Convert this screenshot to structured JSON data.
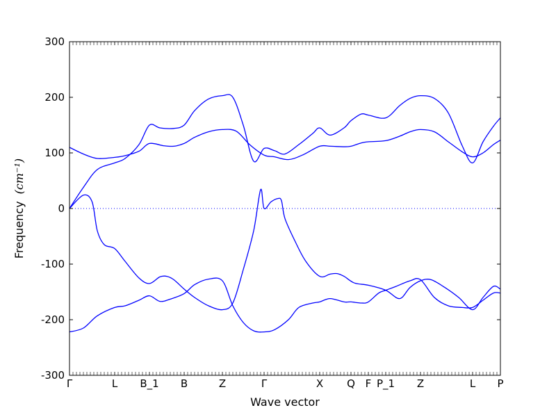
{
  "chart_data": {
    "type": "line",
    "title": "",
    "xlabel": "Wave vector",
    "ylabel": "Frequency",
    "ylabel_unit": "(cm⁻¹)",
    "ylim": [
      -300,
      300
    ],
    "xlim": [
      0,
      12.4
    ],
    "y_ticks": [
      -300,
      -200,
      -100,
      0,
      100,
      200,
      300
    ],
    "x_ticks": [
      {
        "pos": 0,
        "label": "Γ"
      },
      {
        "pos": 1.3,
        "label": "L"
      },
      {
        "pos": 2.3,
        "label": "B_1"
      },
      {
        "pos": 3.3,
        "label": "B"
      },
      {
        "pos": 4.4,
        "label": "Z"
      },
      {
        "pos": 5.6,
        "label": "Γ"
      },
      {
        "pos": 7.2,
        "label": "X"
      },
      {
        "pos": 8.1,
        "label": "Q"
      },
      {
        "pos": 8.6,
        "label": "F"
      },
      {
        "pos": 9.1,
        "label": "P_1"
      },
      {
        "pos": 10.1,
        "label": "Z"
      },
      {
        "pos": 11.6,
        "label": "L"
      },
      {
        "pos": 12.4,
        "label": "P"
      }
    ],
    "zero_line": {
      "y": 0,
      "style": "dotted"
    },
    "grid": false,
    "series_color": "#0000ff",
    "series": [
      {
        "x": [
          0,
          0.4,
          0.8,
          1.3,
          1.6,
          2.0,
          2.3,
          2.7,
          3.0,
          3.3,
          3.6,
          4.0,
          4.4,
          4.8,
          5.2,
          5.6,
          5.9,
          6.3,
          6.7,
          7.2,
          7.5,
          7.9,
          8.1,
          8.4,
          8.6,
          9.1,
          9.5,
          9.8,
          10.1,
          10.5,
          10.9,
          11.3,
          11.6,
          11.9,
          12.2,
          12.4
        ],
        "y": [
          110,
          98,
          90,
          92,
          95,
          103,
          117,
          113,
          112,
          117,
          128,
          138,
          142,
          139,
          114,
          96,
          93,
          88,
          96,
          112,
          112,
          111,
          112,
          118,
          120,
          122,
          130,
          138,
          142,
          138,
          120,
          102,
          93,
          100,
          115,
          123
        ]
      },
      {
        "x": [
          0,
          0.4,
          0.8,
          1.3,
          1.6,
          2.0,
          2.3,
          2.6,
          3.0,
          3.3,
          3.6,
          4.0,
          4.4,
          4.7,
          5.0,
          5.3,
          5.6,
          5.9,
          6.2,
          6.6,
          7.0,
          7.2,
          7.5,
          7.9,
          8.1,
          8.4,
          8.6,
          9.1,
          9.5,
          9.8,
          10.1,
          10.5,
          10.9,
          11.3,
          11.6,
          11.9,
          12.2,
          12.4
        ],
        "y": [
          0,
          38,
          70,
          82,
          90,
          115,
          150,
          145,
          144,
          150,
          176,
          197,
          203,
          200,
          150,
          85,
          108,
          104,
          98,
          115,
          135,
          145,
          132,
          145,
          158,
          170,
          168,
          163,
          185,
          198,
          203,
          198,
          172,
          113,
          82,
          120,
          148,
          163
        ]
      },
      {
        "x": [
          0,
          0.4,
          0.65,
          0.8,
          1.0,
          1.3,
          1.6,
          2.0,
          2.3,
          2.6,
          2.8,
          3.0,
          3.3,
          3.6,
          4.0,
          4.4,
          4.7,
          5.0,
          5.3,
          5.5,
          5.6,
          5.8,
          6.0,
          6.1,
          6.2,
          6.5,
          6.8,
          7.2,
          7.5,
          7.7,
          7.9,
          8.2,
          8.6,
          9.1,
          9.5,
          9.8,
          10.1,
          10.4,
          10.8,
          11.2,
          11.6,
          11.9,
          12.2,
          12.4
        ],
        "y": [
          0,
          24,
          12,
          -40,
          -65,
          -72,
          -95,
          -125,
          -135,
          -123,
          -122,
          -128,
          -145,
          -160,
          -175,
          -182,
          -170,
          -110,
          -40,
          34,
          0,
          12,
          18,
          14,
          -18,
          -60,
          -95,
          -122,
          -118,
          -117,
          -122,
          -134,
          -138,
          -147,
          -162,
          -142,
          -130,
          -128,
          -142,
          -160,
          -182,
          -160,
          -140,
          -145
        ]
      },
      {
        "x": [
          0,
          0.4,
          0.8,
          1.3,
          1.6,
          2.0,
          2.3,
          2.6,
          2.9,
          3.3,
          3.6,
          4.0,
          4.4,
          4.7,
          5.0,
          5.3,
          5.6,
          5.9,
          6.3,
          6.6,
          7.0,
          7.2,
          7.5,
          7.9,
          8.1,
          8.4,
          8.6,
          8.9,
          9.1,
          9.4,
          9.8,
          10.1,
          10.5,
          10.9,
          11.3,
          11.6,
          11.9,
          12.2,
          12.4
        ],
        "y": [
          -222,
          -215,
          -193,
          -178,
          -175,
          -165,
          -157,
          -167,
          -163,
          -153,
          -137,
          -127,
          -130,
          -175,
          -205,
          -220,
          -222,
          -218,
          -200,
          -178,
          -170,
          -168,
          -162,
          -168,
          -168,
          -170,
          -168,
          -152,
          -147,
          -140,
          -130,
          -128,
          -160,
          -175,
          -178,
          -178,
          -165,
          -152,
          -152
        ]
      }
    ]
  }
}
